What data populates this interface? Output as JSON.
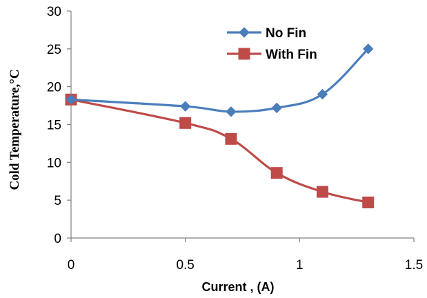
{
  "chart_data": {
    "type": "line",
    "xlabel": "Current , (A)",
    "ylabel": "Cold Temperature,°C",
    "xlim": [
      0,
      1.5
    ],
    "ylim": [
      0,
      30
    ],
    "xticks": [
      0,
      0.5,
      1,
      1.5
    ],
    "xtick_labels": [
      "0",
      "0.5",
      "1",
      "1.5"
    ],
    "yticks": [
      0,
      5,
      10,
      15,
      20,
      25,
      30
    ],
    "ytick_labels": [
      "0",
      "5",
      "10",
      "15",
      "20",
      "25",
      "30"
    ],
    "grid": false,
    "legend_position": "top-right",
    "series": [
      {
        "name": "No Fin",
        "color": "#4A7EBB",
        "marker": "diamond",
        "x": [
          0,
          0.5,
          0.7,
          0.9,
          1.1,
          1.3
        ],
        "y": [
          18.3,
          17.4,
          16.7,
          17.2,
          19.0,
          25.0
        ]
      },
      {
        "name": "With Fin",
        "color": "#BE4B48",
        "marker": "square",
        "x": [
          0,
          0.5,
          0.7,
          0.9,
          1.1,
          1.3
        ],
        "y": [
          18.3,
          15.2,
          13.1,
          8.6,
          6.1,
          4.7
        ]
      }
    ]
  }
}
